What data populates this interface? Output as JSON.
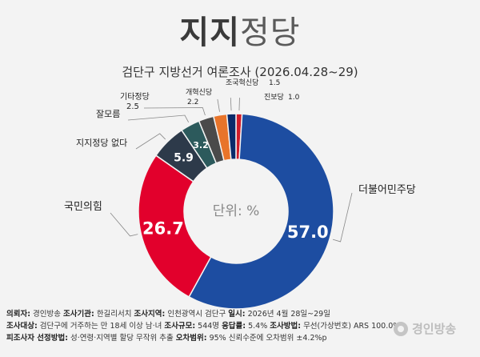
{
  "title": {
    "bold": "지지",
    "light": "정당"
  },
  "subtitle": "검단구 지방선거 여론조사 (2026.04.28~29)",
  "chart_data": {
    "type": "pie",
    "variant": "donut",
    "center_label": "단위: %",
    "slices": [
      {
        "name": "더불어민주당",
        "value": 57.0,
        "display": "57.0",
        "color": "#1d4da1"
      },
      {
        "name": "국민의힘",
        "value": 26.7,
        "display": "26.7",
        "color": "#e2002c"
      },
      {
        "name": "지지정당 없다",
        "value": 5.9,
        "display": "5.9",
        "color": "#2d3a4a"
      },
      {
        "name": "잘모름",
        "value": 3.2,
        "display": "3.2",
        "color": "#2c5a5c"
      },
      {
        "name": "기타정당",
        "value": 2.5,
        "display": "2.5",
        "color": "#4a4a4a"
      },
      {
        "name": "개혁신당",
        "value": 2.2,
        "display": "2.2",
        "color": "#e8742a"
      },
      {
        "name": "조국혁신당",
        "value": 1.5,
        "display": "1.5",
        "color": "#0a2a6a"
      },
      {
        "name": "진보당",
        "value": 1.0,
        "display": "1.0",
        "color": "#d01c2a"
      }
    ]
  },
  "footer": {
    "lines": [
      [
        {
          "label": "의뢰자:",
          "value": " 경인방송  "
        },
        {
          "label": "조사기관:",
          "value": " 한길리서치  "
        },
        {
          "label": "조사지역:",
          "value": " 인천광역시 검단구  "
        },
        {
          "label": "일시:",
          "value": " 2026년 4월 28일~29일"
        }
      ],
      [
        {
          "label": "조사대상:",
          "value": "  검단구에 거주하는 만 18세 이상 남·녀  "
        },
        {
          "label": "조사규모:",
          "value": " 544명 "
        },
        {
          "label": "응답률:",
          "value": " 5.4% "
        },
        {
          "label": "조사방법:",
          "value": " 무선(가상번호) ARS 100.0%"
        }
      ],
      [
        {
          "label": "피조사자 선정방법:",
          "value": " 성·연령·지역별 할당 무작위 추출  "
        },
        {
          "label": "오차범위:",
          "value": "  95% 신뢰수준에 오차범위 ±4.2%p"
        }
      ]
    ]
  },
  "logo": {
    "text": "경인방송"
  }
}
